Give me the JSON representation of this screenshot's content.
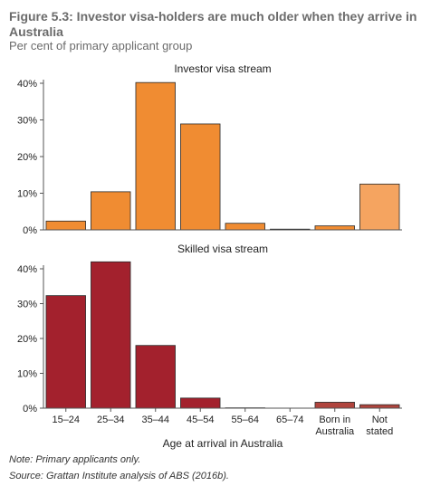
{
  "figure": {
    "title": "Figure 5.3: Investor visa-holders are much older when they arrive in Australia",
    "subtitle": "Per cent of primary applicant group",
    "note": "Note: Primary applicants only.",
    "source": "Source: Grattan Institute analysis of ABS (2016b)."
  },
  "chart_data": [
    {
      "type": "bar",
      "title": "Investor visa stream",
      "categories": [
        "15–24",
        "25–34",
        "35–44",
        "45–54",
        "55–64",
        "65–74",
        "Born in Australia",
        "Not stated"
      ],
      "values": [
        2.4,
        10.4,
        40.2,
        28.9,
        1.8,
        0.2,
        1.1,
        12.5
      ],
      "ylim": [
        0,
        40
      ],
      "yticks": [
        "0%",
        "10%",
        "20%",
        "30%",
        "40%"
      ],
      "colors": [
        "#f08c32",
        "#f08c32",
        "#f08c32",
        "#f08c32",
        "#f08c32",
        "#f08c32",
        "#f08c32",
        "#f5a460"
      ],
      "grid": false
    },
    {
      "type": "bar",
      "title": "Skilled visa stream",
      "categories": [
        "15–24",
        "25–34",
        "35–44",
        "45–54",
        "55–64",
        "65–74",
        "Born in Australia",
        "Not stated"
      ],
      "values": [
        32.3,
        42.0,
        18.0,
        2.9,
        0.1,
        0.0,
        1.7,
        1.0
      ],
      "ylim": [
        0,
        40
      ],
      "yticks": [
        "0%",
        "10%",
        "20%",
        "30%",
        "40%"
      ],
      "colors": [
        "#a3212d",
        "#a3212d",
        "#a3212d",
        "#a3212d",
        "#a3212d",
        "#a3212d",
        "#b0443d",
        "#b0443d"
      ],
      "grid": false
    }
  ],
  "x_axis": {
    "label": "Age at arrival in Australia",
    "tick_lines": [
      [
        "15–24"
      ],
      [
        "25–34"
      ],
      [
        "35–44"
      ],
      [
        "45–54"
      ],
      [
        "55–64"
      ],
      [
        "65–74"
      ],
      [
        "Born in",
        "Australia"
      ],
      [
        "Not",
        "stated"
      ]
    ]
  }
}
